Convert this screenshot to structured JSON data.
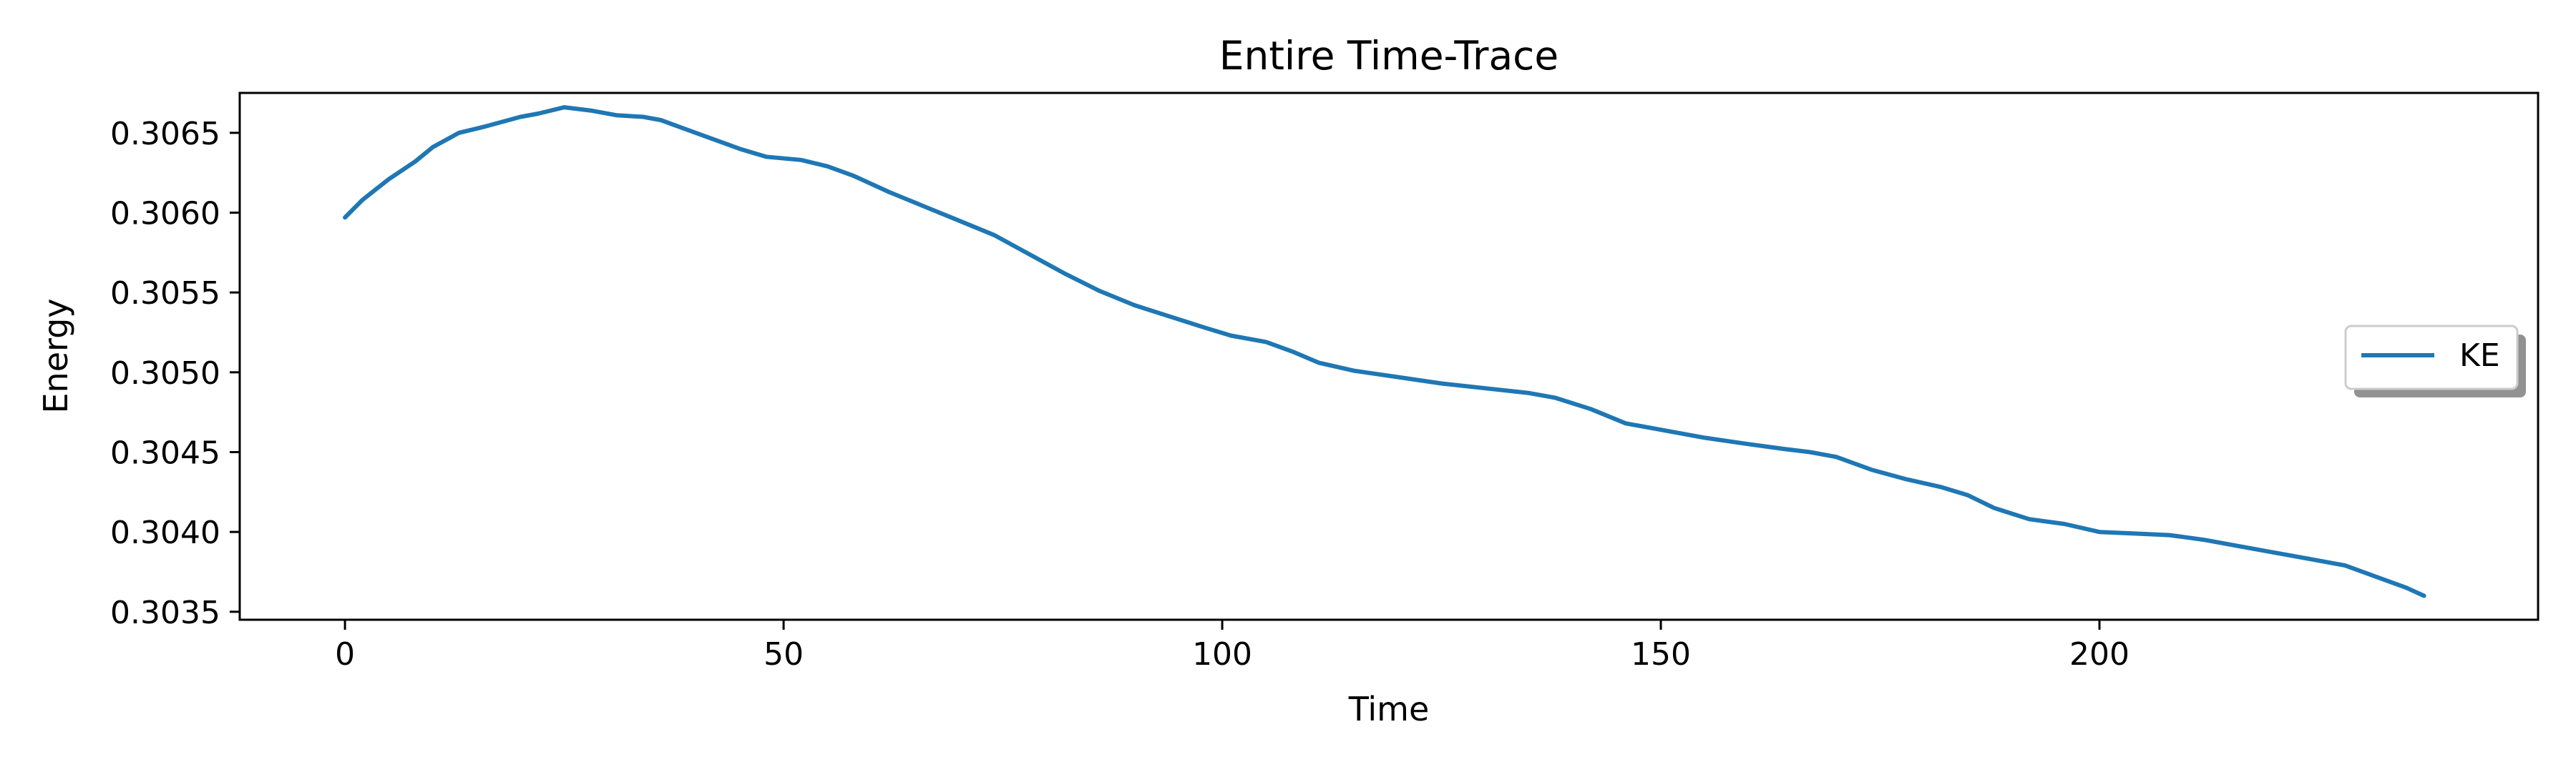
{
  "chart_data": {
    "type": "line",
    "title": "Entire Time-Trace",
    "xlabel": "Time",
    "ylabel": "Energy",
    "xlim": [
      -12,
      250
    ],
    "ylim": [
      0.30345,
      0.30675
    ],
    "xticks": [
      0,
      50,
      100,
      150,
      200
    ],
    "xtick_labels": [
      "0",
      "50",
      "100",
      "150",
      "200"
    ],
    "yticks": [
      0.3035,
      0.304,
      0.3045,
      0.305,
      0.3055,
      0.306,
      0.3065
    ],
    "ytick_labels": [
      "0.3035",
      "0.3040",
      "0.3045",
      "0.3050",
      "0.3055",
      "0.3060",
      "0.3065"
    ],
    "grid": false,
    "legend_position": "center-right",
    "series": [
      {
        "name": "KE",
        "color": "#1f77b4",
        "x": [
          0,
          2,
          5,
          8,
          10,
          13,
          16,
          20,
          22,
          25,
          28,
          31,
          34,
          36,
          39,
          42,
          45,
          48,
          52,
          55,
          58,
          62,
          66,
          70,
          74,
          78,
          82,
          86,
          90,
          94,
          98,
          101,
          105,
          108,
          111,
          115,
          120,
          125,
          130,
          135,
          138,
          142,
          146,
          150,
          155,
          160,
          164,
          167,
          170,
          174,
          178,
          182,
          185,
          188,
          192,
          196,
          200,
          204,
          208,
          212,
          216,
          220,
          224,
          228,
          232,
          235,
          237
        ],
        "y": [
          0.30597,
          0.30608,
          0.30621,
          0.30632,
          0.30641,
          0.3065,
          0.30654,
          0.3066,
          0.30662,
          0.30666,
          0.30664,
          0.30661,
          0.3066,
          0.30658,
          0.30652,
          0.30646,
          0.3064,
          0.30635,
          0.30633,
          0.30629,
          0.30623,
          0.30613,
          0.30604,
          0.30595,
          0.30586,
          0.30574,
          0.30562,
          0.30551,
          0.30542,
          0.30535,
          0.30528,
          0.30523,
          0.30519,
          0.30513,
          0.30506,
          0.30501,
          0.30497,
          0.30493,
          0.3049,
          0.30487,
          0.30484,
          0.30477,
          0.30468,
          0.30464,
          0.30459,
          0.30455,
          0.30452,
          0.3045,
          0.30447,
          0.30439,
          0.30433,
          0.30428,
          0.30423,
          0.30415,
          0.30408,
          0.30405,
          0.304,
          0.30399,
          0.30398,
          0.30395,
          0.30391,
          0.30387,
          0.30383,
          0.30379,
          0.30371,
          0.30365,
          0.3036
        ]
      }
    ]
  }
}
